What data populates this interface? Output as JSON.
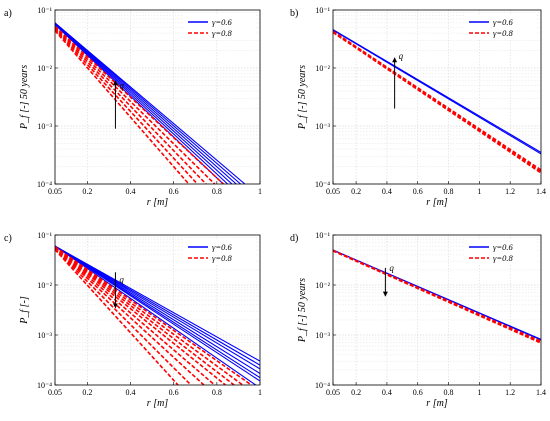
{
  "colors": {
    "blue": "#0000ff",
    "red": "#ff0000",
    "grid": "#d9d9d9",
    "axis": "#000000"
  },
  "chart_data": [
    {
      "panel_label": "a)",
      "type": "line",
      "xlabel": "r [m]",
      "ylabel": "P_f [-] 50 years",
      "xlim": [
        0.05,
        1
      ],
      "ylim": [
        0.0001,
        0.1
      ],
      "yscale": "log",
      "grid": true,
      "legend_position": "top-right",
      "xticks": [
        0.05,
        0.2,
        0.4,
        0.6,
        0.8,
        1
      ],
      "xtick_labels": [
        "0.05",
        "0.2",
        "0.4",
        "0.6",
        "0.8",
        "1"
      ],
      "yticks": [
        0.0001,
        0.001,
        0.01,
        0.1
      ],
      "ytick_labels": [
        "10⁻⁴",
        "10⁻³",
        "10⁻²",
        "10⁻¹"
      ],
      "legend": [
        "γ=0.6",
        "γ=0.8"
      ],
      "annotation": "q",
      "arrow": {
        "x": 0.33,
        "y_from": 0.0009,
        "y_to": 0.006,
        "label_y": 0.005
      },
      "series": [
        {
          "group": "blue",
          "x": [
            0.05,
            0.93
          ],
          "y": [
            0.06,
            0.0001
          ]
        },
        {
          "group": "blue",
          "x": [
            0.05,
            0.91
          ],
          "y": [
            0.06,
            0.0001
          ]
        },
        {
          "group": "blue",
          "x": [
            0.05,
            0.89
          ],
          "y": [
            0.059,
            0.0001
          ]
        },
        {
          "group": "blue",
          "x": [
            0.05,
            0.87
          ],
          "y": [
            0.058,
            0.0001
          ]
        },
        {
          "group": "blue",
          "x": [
            0.05,
            0.85
          ],
          "y": [
            0.057,
            0.0001
          ]
        },
        {
          "group": "blue",
          "x": [
            0.05,
            0.83
          ],
          "y": [
            0.056,
            0.0001
          ]
        },
        {
          "group": "red",
          "x": [
            0.05,
            0.83
          ],
          "y": [
            0.052,
            0.0001
          ]
        },
        {
          "group": "red",
          "x": [
            0.05,
            0.79
          ],
          "y": [
            0.05,
            0.0001
          ]
        },
        {
          "group": "red",
          "x": [
            0.05,
            0.75
          ],
          "y": [
            0.048,
            0.0001
          ]
        },
        {
          "group": "red",
          "x": [
            0.05,
            0.71
          ],
          "y": [
            0.046,
            0.0001
          ]
        },
        {
          "group": "red",
          "x": [
            0.05,
            0.67
          ],
          "y": [
            0.044,
            0.0001
          ]
        }
      ]
    },
    {
      "panel_label": "b)",
      "type": "line",
      "xlabel": "r [m]",
      "ylabel": "P_f [-] 50 years",
      "xlim": [
        0.05,
        1.4
      ],
      "ylim": [
        0.0001,
        0.1
      ],
      "yscale": "log",
      "grid": true,
      "legend_position": "top-right",
      "xticks": [
        0.05,
        0.2,
        0.4,
        0.6,
        0.8,
        1,
        1.2,
        1.4
      ],
      "xtick_labels": [
        "0.05",
        "0.2",
        "0.4",
        "0.6",
        "0.8",
        "1",
        "1.2",
        "1.4"
      ],
      "yticks": [
        0.0001,
        0.001,
        0.01,
        0.1
      ],
      "ytick_labels": [
        "10⁻⁴",
        "10⁻³",
        "10⁻²",
        "10⁻¹"
      ],
      "legend": [
        "γ=0.6",
        "γ=0.8"
      ],
      "annotation": "q",
      "arrow": {
        "x": 0.45,
        "y_from": 0.002,
        "y_to": 0.015,
        "label_y": 0.016
      },
      "series": [
        {
          "group": "blue",
          "x": [
            0.05,
            1.4
          ],
          "y": [
            0.046,
            0.00035
          ]
        },
        {
          "group": "blue",
          "x": [
            0.05,
            1.4
          ],
          "y": [
            0.045,
            0.00033
          ]
        },
        {
          "group": "red",
          "x": [
            0.05,
            1.4
          ],
          "y": [
            0.043,
            0.000175
          ]
        },
        {
          "group": "red",
          "x": [
            0.05,
            1.4
          ],
          "y": [
            0.042,
            0.000165
          ]
        },
        {
          "group": "red",
          "x": [
            0.05,
            1.4
          ],
          "y": [
            0.041,
            0.000155
          ]
        }
      ]
    },
    {
      "panel_label": "c)",
      "type": "line",
      "xlabel": "r [m]",
      "ylabel": "P_f [-]",
      "xlim": [
        0.05,
        1
      ],
      "ylim": [
        0.0001,
        0.1
      ],
      "yscale": "log",
      "grid": true,
      "legend_position": "top-right",
      "xticks": [
        0.05,
        0.2,
        0.4,
        0.6,
        0.8,
        1
      ],
      "xtick_labels": [
        "0.05",
        "0.2",
        "0.4",
        "0.6",
        "0.8",
        "1"
      ],
      "yticks": [
        0.0001,
        0.001,
        0.01,
        0.1
      ],
      "ytick_labels": [
        "10⁻⁴",
        "10⁻³",
        "10⁻²",
        "10⁻¹"
      ],
      "legend": [
        "γ=0.6",
        "γ=0.8"
      ],
      "annotation": "q",
      "arrow": {
        "x": 0.33,
        "y_from": 0.018,
        "y_to": 0.0035,
        "label_y": 0.013
      },
      "series": [
        {
          "group": "blue",
          "x": [
            0.05,
            1
          ],
          "y": [
            0.06,
            0.0003
          ]
        },
        {
          "group": "blue",
          "x": [
            0.05,
            1
          ],
          "y": [
            0.06,
            0.00025
          ]
        },
        {
          "group": "blue",
          "x": [
            0.05,
            1
          ],
          "y": [
            0.06,
            0.00021
          ]
        },
        {
          "group": "blue",
          "x": [
            0.05,
            1
          ],
          "y": [
            0.06,
            0.00017
          ]
        },
        {
          "group": "blue",
          "x": [
            0.05,
            1
          ],
          "y": [
            0.06,
            0.00014
          ]
        },
        {
          "group": "blue",
          "x": [
            0.05,
            1
          ],
          "y": [
            0.06,
            0.00012
          ]
        },
        {
          "group": "blue",
          "x": [
            0.05,
            0.98
          ],
          "y": [
            0.06,
            0.0001
          ]
        },
        {
          "group": "red",
          "x": [
            0.05,
            0.96
          ],
          "y": [
            0.058,
            0.0001
          ]
        },
        {
          "group": "red",
          "x": [
            0.05,
            0.92
          ],
          "y": [
            0.057,
            0.0001
          ]
        },
        {
          "group": "red",
          "x": [
            0.05,
            0.88
          ],
          "y": [
            0.056,
            0.0001
          ]
        },
        {
          "group": "red",
          "x": [
            0.05,
            0.84
          ],
          "y": [
            0.055,
            0.0001
          ]
        },
        {
          "group": "red",
          "x": [
            0.05,
            0.79
          ],
          "y": [
            0.054,
            0.0001
          ]
        },
        {
          "group": "red",
          "x": [
            0.05,
            0.74
          ],
          "y": [
            0.053,
            0.0001
          ]
        },
        {
          "group": "red",
          "x": [
            0.05,
            0.68
          ],
          "y": [
            0.052,
            0.0001
          ]
        },
        {
          "group": "red",
          "x": [
            0.05,
            0.62
          ],
          "y": [
            0.051,
            0.0001
          ]
        }
      ]
    },
    {
      "panel_label": "d)",
      "type": "line",
      "xlabel": "r [m]",
      "ylabel": "P_f [-] 50 years",
      "xlim": [
        0.05,
        1.4
      ],
      "ylim": [
        0.0001,
        0.1
      ],
      "yscale": "log",
      "grid": true,
      "legend_position": "top-right",
      "xticks": [
        0.05,
        0.2,
        0.4,
        0.6,
        0.8,
        1,
        1.2,
        1.4
      ],
      "xtick_labels": [
        "0.05",
        "0.2",
        "0.4",
        "0.6",
        "0.8",
        "1",
        "1.2",
        "1.4"
      ],
      "yticks": [
        0.0001,
        0.001,
        0.01,
        0.1
      ],
      "ytick_labels": [
        "10⁻⁴",
        "10⁻³",
        "10⁻²",
        "10⁻¹"
      ],
      "legend": [
        "γ=0.6",
        "γ=0.8"
      ],
      "annotation": "q",
      "arrow": {
        "x": 0.39,
        "y_from": 0.022,
        "y_to": 0.006,
        "label_y": 0.022
      },
      "series": [
        {
          "group": "blue",
          "x": [
            0.05,
            1.4
          ],
          "y": [
            0.05,
            0.00082
          ]
        },
        {
          "group": "blue",
          "x": [
            0.05,
            1.4
          ],
          "y": [
            0.05,
            0.0008
          ]
        },
        {
          "group": "red",
          "x": [
            0.05,
            1.4
          ],
          "y": [
            0.049,
            0.00075
          ]
        },
        {
          "group": "red",
          "x": [
            0.05,
            1.4
          ],
          "y": [
            0.049,
            0.00072
          ]
        },
        {
          "group": "red",
          "x": [
            0.05,
            1.4
          ],
          "y": [
            0.048,
            0.00069
          ]
        }
      ]
    }
  ]
}
